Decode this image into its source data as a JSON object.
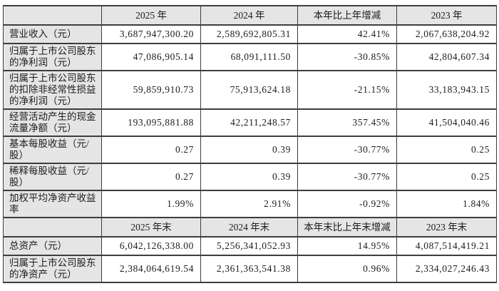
{
  "colors": {
    "header_bg": "#e5e5e5",
    "border": "#3d3d3d",
    "text": "#1c1c1c",
    "page_bg": "#ffffff"
  },
  "section1": {
    "header": {
      "c1": "",
      "c2": "2025 年",
      "c3": "2024 年",
      "c4": "本年比上年增减",
      "c5": "2023 年"
    },
    "rows": [
      {
        "label": "营业收入（元）",
        "y2025": "3,687,947,300.20",
        "y2024": "2,589,692,805.31",
        "change": "42.41%",
        "y2023": "2,067,638,204.92"
      },
      {
        "label": "归属于上市公司股东的净利润（元）",
        "y2025": "47,086,905.14",
        "y2024": "68,091,111.50",
        "change": "-30.85%",
        "y2023": "42,804,607.34"
      },
      {
        "label": "归属于上市公司股东的扣除非经常性损益的净利润（元）",
        "y2025": "59,859,910.73",
        "y2024": "75,913,624.18",
        "change": "-21.15%",
        "y2023": "33,183,943.15"
      },
      {
        "label": "经营活动产生的现金流量净额（元）",
        "y2025": "193,095,881.88",
        "y2024": "42,211,248.57",
        "change": "357.45%",
        "y2023": "41,504,040.46"
      },
      {
        "label": "基本每股收益（元/股）",
        "y2025": "0.27",
        "y2024": "0.39",
        "change": "-30.77%",
        "y2023": "0.25"
      },
      {
        "label": "稀释每股收益（元/股）",
        "y2025": "0.27",
        "y2024": "0.39",
        "change": "-30.77%",
        "y2023": "0.25"
      },
      {
        "label": "加权平均净资产收益率",
        "y2025": "1.99%",
        "y2024": "2.91%",
        "change": "-0.92%",
        "y2023": "1.84%"
      }
    ]
  },
  "section2": {
    "header": {
      "c1": "",
      "c2": "2025 年末",
      "c3": "2024 年末",
      "c4": "本年末比上年末增减",
      "c5": "2023 年末"
    },
    "rows": [
      {
        "label": "总资产（元）",
        "y2025": "6,042,126,338.00",
        "y2024": "5,256,341,052.93",
        "change": "14.95%",
        "y2023": "4,087,514,419.21"
      },
      {
        "label": "归属于上市公司股东的净资产（元）",
        "y2025": "2,384,064,619.54",
        "y2024": "2,361,363,541.38",
        "change": "0.96%",
        "y2023": "2,334,027,246.43"
      }
    ]
  }
}
